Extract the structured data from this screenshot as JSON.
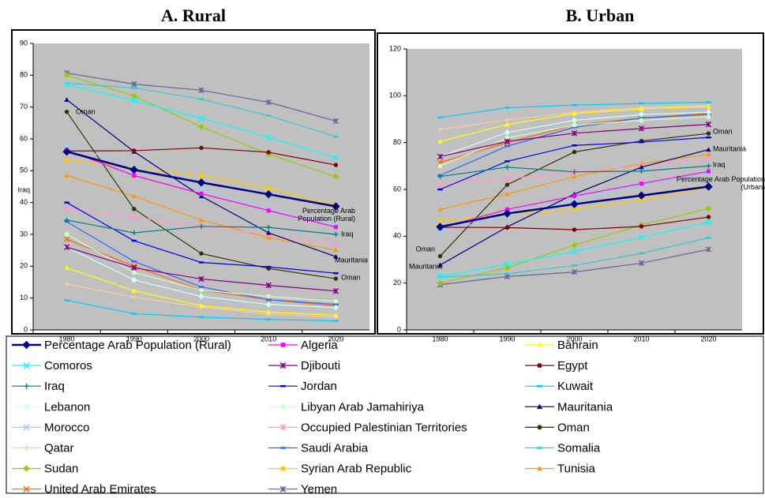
{
  "chart_data": [
    {
      "type": "line",
      "title": "A. Rural",
      "categories": [
        "1980",
        "1990",
        "2000",
        "2010",
        "2020"
      ],
      "ylim": [
        0,
        90
      ],
      "yticks": [
        0,
        10,
        20,
        30,
        40,
        50,
        60,
        70,
        80,
        90
      ],
      "grid": false,
      "annotations": [
        "Oman",
        "Iraq",
        "Percentage Arab Population (Rural)",
        "Iraq",
        "Mauritania",
        "Oman"
      ],
      "series": [
        {
          "name": "Percentage Arab Population (Rural)",
          "color": "#000080",
          "marker": "diamond",
          "values": [
            56,
            50.3,
            46.3,
            42.6,
            38.8
          ]
        },
        {
          "name": "Algeria",
          "color": "#FF00FF",
          "marker": "square",
          "values": [
            56.5,
            48.5,
            42.8,
            37.5,
            32.3
          ]
        },
        {
          "name": "Bahrain",
          "color": "#FFFF00",
          "marker": "triangle",
          "values": [
            19.5,
            12.3,
            7.6,
            5.6,
            4.6
          ]
        },
        {
          "name": "Comoros",
          "color": "#00FFFF",
          "marker": "x",
          "values": [
            77,
            72,
            66.5,
            60.5,
            54
          ]
        },
        {
          "name": "Djibouti",
          "color": "#800080",
          "marker": "asterisk",
          "values": [
            26,
            19.5,
            16,
            14,
            12.2
          ]
        },
        {
          "name": "Egypt",
          "color": "#800000",
          "marker": "circle",
          "values": [
            56.2,
            56.3,
            57.2,
            55.8,
            51.8
          ]
        },
        {
          "name": "Iraq",
          "color": "#008080",
          "marker": "plus",
          "values": [
            34.5,
            30.5,
            32.5,
            32.2,
            30
          ]
        },
        {
          "name": "Jordan",
          "color": "#0000FF",
          "marker": "dash",
          "values": [
            40,
            28,
            21.2,
            19.8,
            17.8
          ]
        },
        {
          "name": "Kuwait",
          "color": "#00CCFF",
          "marker": "dash",
          "values": [
            9.3,
            5.1,
            4,
            3.3,
            2.8
          ]
        },
        {
          "name": "Lebanon",
          "color": "#CCFFFF",
          "marker": "diamond",
          "values": [
            26,
            15.7,
            10.5,
            8,
            7
          ]
        },
        {
          "name": "Libyan Arab Jamahiriya",
          "color": "#CCFFCC",
          "marker": "square",
          "values": [
            30,
            18,
            12.5,
            10.5,
            9
          ]
        },
        {
          "name": "Mauritania",
          "color": "#000080",
          "marker": "triangle",
          "values": [
            72.3,
            56,
            42,
            30.5,
            23
          ]
        },
        {
          "name": "Morocco",
          "color": "#99CCFF",
          "marker": "x",
          "values": [
            58,
            51.5,
            44.5,
            38,
            33
          ]
        },
        {
          "name": "Occupied Palestinian Territories",
          "color": "#FF99CC",
          "marker": "asterisk",
          "values": [
            38,
            35.5,
            32.5,
            30,
            26.8
          ]
        },
        {
          "name": "Oman",
          "color": "#333300",
          "marker": "circle",
          "values": [
            68.5,
            38,
            24,
            19.3,
            16.1
          ]
        },
        {
          "name": "Qatar",
          "color": "#FFCC99",
          "marker": "plus",
          "values": [
            14.4,
            10.3,
            7.1,
            5,
            4
          ]
        },
        {
          "name": "Saudi Arabia",
          "color": "#3366FF",
          "marker": "dash",
          "values": [
            34,
            21.5,
            13.5,
            9.5,
            8
          ]
        },
        {
          "name": "Somalia",
          "color": "#33CCCC",
          "marker": "dash",
          "values": [
            77.5,
            76,
            72.5,
            67.3,
            60.7
          ]
        },
        {
          "name": "Sudan",
          "color": "#99CC00",
          "marker": "diamond",
          "values": [
            80,
            73.5,
            63.8,
            55.2,
            48.2
          ]
        },
        {
          "name": "Syrian Arab Republic",
          "color": "#FFCC00",
          "marker": "square",
          "values": [
            53.3,
            51,
            48.5,
            44.5,
            39.2
          ]
        },
        {
          "name": "Tunisia",
          "color": "#FF9900",
          "marker": "triangle",
          "values": [
            48.5,
            42,
            34.5,
            29,
            25
          ]
        },
        {
          "name": "United Arab Emirates",
          "color": "#FF6600",
          "marker": "x",
          "values": [
            28.5,
            20,
            12.5,
            9.5,
            7.5
          ]
        },
        {
          "name": "Yemen",
          "color": "#666699",
          "marker": "asterisk",
          "values": [
            80.7,
            77.2,
            75.3,
            71.5,
            65.6
          ]
        }
      ]
    },
    {
      "type": "line",
      "title": "B. Urban",
      "categories": [
        "1980",
        "1990",
        "2000",
        "2010",
        "2020"
      ],
      "ylim": [
        0,
        120
      ],
      "yticks": [
        0,
        20,
        40,
        60,
        80,
        100,
        120
      ],
      "grid": false,
      "annotations": [
        "Oman",
        "Mauritania",
        "Iraq",
        "Percentage Arab Population (Urban)",
        "Oman",
        "Mauritania"
      ],
      "series": [
        {
          "values": [
            44,
            49.7,
            53.7,
            57.4,
            61.2
          ]
        },
        {
          "values": [
            43.5,
            51.5,
            57.2,
            62.5,
            67.7
          ]
        },
        {
          "values": [
            80.5,
            87.7,
            92.4,
            94.4,
            95.4
          ]
        },
        {
          "values": [
            23,
            28,
            33.5,
            39.5,
            46
          ]
        },
        {
          "values": [
            74,
            80.5,
            84,
            86,
            87.8
          ]
        },
        {
          "values": [
            43.8,
            43.7,
            42.8,
            44.2,
            48.2
          ]
        },
        {
          "values": [
            65.5,
            69.5,
            67.5,
            67.8,
            70
          ]
        },
        {
          "values": [
            60,
            72,
            78.8,
            80.2,
            82.2
          ]
        },
        {
          "values": [
            90.7,
            94.9,
            96,
            96.7,
            97.2
          ]
        },
        {
          "values": [
            74,
            84.3,
            89.5,
            92,
            93
          ]
        },
        {
          "values": [
            70,
            82,
            87.5,
            89.5,
            91
          ]
        },
        {
          "values": [
            27.7,
            44,
            58,
            69.5,
            77
          ]
        },
        {
          "values": [
            42,
            48.5,
            55.5,
            62,
            67
          ]
        },
        {
          "values": [
            62,
            64.5,
            67.5,
            70,
            73.2
          ]
        },
        {
          "values": [
            31.5,
            62,
            76,
            80.7,
            83.9
          ]
        },
        {
          "values": [
            85.6,
            89.7,
            92.9,
            95,
            96
          ]
        },
        {
          "values": [
            66,
            78.5,
            86.5,
            90.5,
            92
          ]
        },
        {
          "values": [
            22.5,
            24,
            27.5,
            32.7,
            39.3
          ]
        },
        {
          "values": [
            20,
            26.5,
            36.2,
            44.8,
            51.8
          ]
        },
        {
          "values": [
            46.7,
            49,
            51.5,
            55.5,
            60.8
          ]
        },
        {
          "values": [
            51.5,
            58,
            65.5,
            71,
            75
          ]
        },
        {
          "values": [
            71.5,
            80,
            87.5,
            90.5,
            92.5
          ]
        },
        {
          "values": [
            19.3,
            22.8,
            24.7,
            28.5,
            34.4
          ]
        }
      ]
    }
  ]
}
